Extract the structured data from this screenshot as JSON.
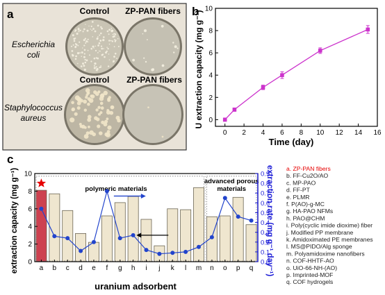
{
  "panel_a": {
    "letter": "a",
    "col_headers": [
      "Control",
      "ZP-PAN fibers"
    ],
    "row_labels": [
      [
        "Escherichia",
        "coli"
      ],
      [
        "Staphylococcus",
        "aureus"
      ]
    ]
  },
  "colors": {
    "panel_a_bg": "#e9e3d8",
    "dish": "#c7c2b2",
    "colony": "#f5efdc",
    "line_b": "#cc33cc",
    "bar_fill": "#efe6cf",
    "bar_first": "#cd4150",
    "rate_line": "#2244cc",
    "right_axis": "#1a1ad6",
    "star": "#e60000",
    "highlight_label": "#e60000"
  },
  "chart_data": [
    {
      "type": "line",
      "panel": "b",
      "xlabel": "Time (day)",
      "ylabel": "U extraction capacity (mg g⁻¹)",
      "x": [
        0,
        1,
        4,
        6,
        10,
        15
      ],
      "y": [
        0.0,
        0.9,
        2.9,
        4.0,
        6.2,
        8.1
      ],
      "err": [
        0.15,
        0.15,
        0.2,
        0.3,
        0.25,
        0.35
      ],
      "xlim": [
        -1,
        16
      ],
      "ylim": [
        -0.6,
        10
      ],
      "xticks": [
        0,
        2,
        4,
        6,
        8,
        10,
        12,
        14,
        16
      ],
      "yticks": [
        0,
        2,
        4,
        6,
        8,
        10
      ]
    },
    {
      "type": "bar",
      "panel": "c",
      "categories": [
        "a",
        "b",
        "c",
        "d",
        "e",
        "f",
        "g",
        "h",
        "i",
        "j",
        "k",
        "l",
        "m",
        "n",
        "o",
        "p",
        "q"
      ],
      "values": [
        8.1,
        7.7,
        5.8,
        3.2,
        2.2,
        5.2,
        6.7,
        7.4,
        4.8,
        1.8,
        6.0,
        5.9,
        8.4,
        5.1,
        5.2,
        7.3,
        4.2
      ],
      "rate_values": [
        0.54,
        0.26,
        0.24,
        0.11,
        0.2,
        0.72,
        0.24,
        0.27,
        0.12,
        0.08,
        0.09,
        0.1,
        0.15,
        0.25,
        0.65,
        0.46,
        0.42
      ],
      "xlabel": "uranium adsorbent",
      "ylabel": "extraction capacity (mg g⁻¹)",
      "ylabel_right": "extraction rate (mg g⁻¹ day⁻¹)",
      "ylim": [
        0,
        10
      ],
      "ylim_right": [
        0,
        0.9
      ],
      "yticks": [
        0,
        2,
        4,
        6,
        8,
        10
      ],
      "yticks_right": [
        0.0,
        0.1,
        0.2,
        0.3,
        0.4,
        0.5,
        0.6,
        0.7,
        0.8,
        0.9
      ],
      "group_labels": [
        "polymeric materials",
        "advanced porous materials"
      ],
      "legend": [
        "a. ZP-PAN fibers",
        "b. FF-Cu2O/AO",
        "c. MP-PAO",
        "d. FF-PT",
        "e. PLMR",
        "f. P(AO)-g-MC",
        "g. HA-PAO NFMs",
        "h. PAO@CHM",
        "i. Poly(cyclic imide dioxime) fiber",
        "j. Modified PP membrane",
        "k. Amidoximated PE  membranes",
        "l. MS@PIDO/Alg sponge",
        "m. Polyamidoxime nanofibers",
        "n. COF-HHTF-AO",
        "o. UiO-66-NH-(AO)",
        "p. Imprinted-MOF",
        "q. COF hydrogels"
      ]
    }
  ],
  "panel_letters": {
    "b": "b",
    "c": "c"
  }
}
